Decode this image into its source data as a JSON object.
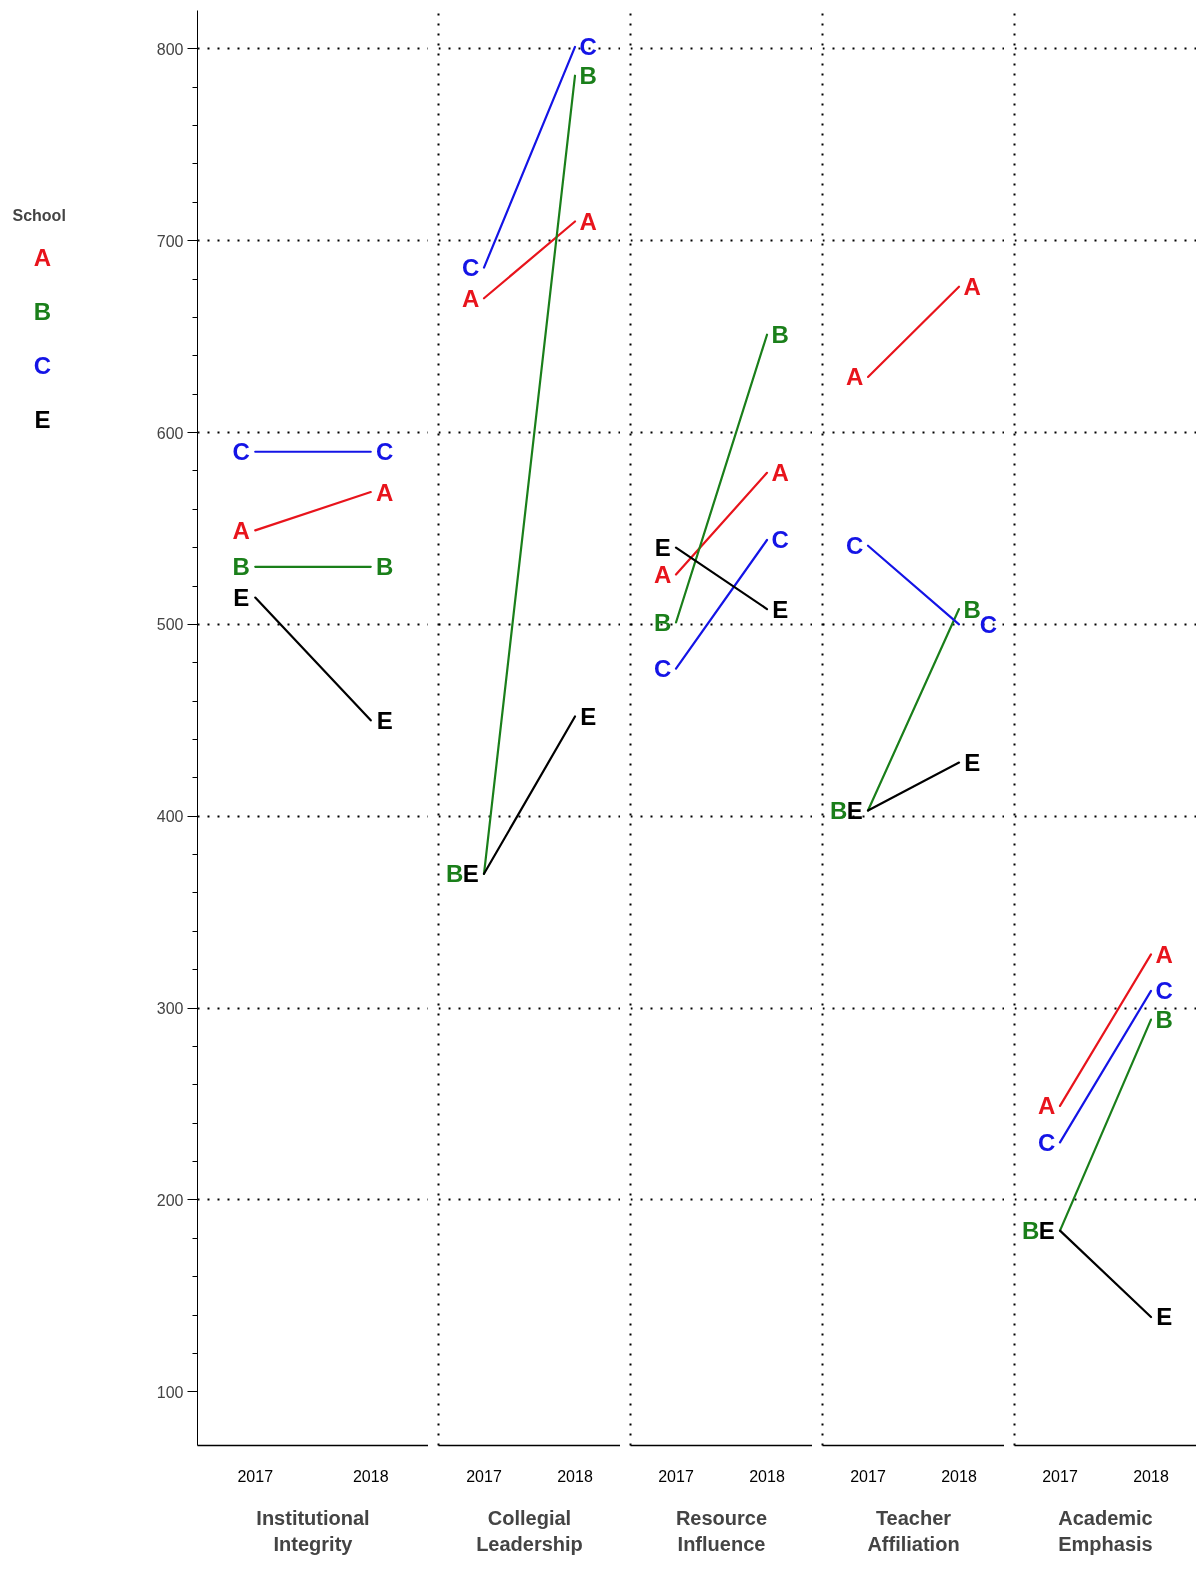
{
  "chart_data": [
    {
      "type": "line",
      "xlabel": "Institutional Integrity",
      "categories": [
        "2017",
        "2018"
      ],
      "ylim": [
        72,
        820
      ],
      "yticks": [
        100,
        200,
        300,
        400,
        500,
        600,
        700,
        800
      ],
      "grid": true,
      "legend": "left",
      "legend_title": "School",
      "series": [
        {
          "name": "A",
          "color": "#e8141c",
          "values": [
            549,
            569
          ]
        },
        {
          "name": "B",
          "color": "#1a7f1a",
          "values": [
            530,
            530
          ]
        },
        {
          "name": "C",
          "color": "#1414e6",
          "values": [
            590,
            590
          ]
        },
        {
          "name": "E",
          "color": "#000000",
          "values": [
            514,
            450
          ]
        }
      ]
    },
    {
      "type": "line",
      "xlabel": "Collegial Leadership",
      "categories": [
        "2017",
        "2018"
      ],
      "ylim": [
        72,
        820
      ],
      "yticks": [
        100,
        200,
        300,
        400,
        500,
        600,
        700,
        800
      ],
      "grid": true,
      "tick_labels": "x",
      "series": [
        {
          "name": "A",
          "color": "#e8141c",
          "values": [
            670,
            710
          ]
        },
        {
          "name": "B",
          "color": "#1a7f1a",
          "values": [
            370,
            786
          ]
        },
        {
          "name": "C",
          "color": "#1414e6",
          "values": [
            686,
            801
          ]
        },
        {
          "name": "E",
          "color": "#000000",
          "values": [
            370,
            452
          ]
        }
      ]
    },
    {
      "type": "line",
      "xlabel": "Resource Influence",
      "categories": [
        "2017",
        "2018"
      ],
      "ylim": [
        72,
        820
      ],
      "yticks": [
        100,
        200,
        300,
        400,
        500,
        600,
        700,
        800
      ],
      "grid": true,
      "tick_labels": "x",
      "series": [
        {
          "name": "A",
          "color": "#e8141c",
          "values": [
            526,
            579
          ]
        },
        {
          "name": "B",
          "color": "#1a7f1a",
          "values": [
            501,
            651
          ]
        },
        {
          "name": "C",
          "color": "#1414e6",
          "values": [
            477,
            544
          ]
        },
        {
          "name": "E",
          "color": "#000000",
          "values": [
            540,
            508
          ]
        }
      ]
    },
    {
      "type": "line",
      "xlabel": "Teacher Affiliation",
      "categories": [
        "2017",
        "2018"
      ],
      "ylim": [
        72,
        820
      ],
      "yticks": [
        100,
        200,
        300,
        400,
        500,
        600,
        700,
        800
      ],
      "grid": true,
      "tick_labels": "x",
      "series": [
        {
          "name": "A",
          "color": "#e8141c",
          "values": [
            629,
            676
          ]
        },
        {
          "name": "B",
          "color": "#1a7f1a",
          "values": [
            403,
            508
          ]
        },
        {
          "name": "C",
          "color": "#1414e6",
          "values": [
            541,
            500
          ]
        },
        {
          "name": "E",
          "color": "#000000",
          "values": [
            403,
            428
          ]
        }
      ]
    },
    {
      "type": "line",
      "xlabel": "Academic Emphasis",
      "categories": [
        "2017",
        "2018"
      ],
      "ylim": [
        72,
        820
      ],
      "yticks": [
        100,
        200,
        300,
        400,
        500,
        600,
        700,
        800
      ],
      "grid": true,
      "tick_labels": "x",
      "series": [
        {
          "name": "A",
          "color": "#e8141c",
          "values": [
            249,
            328
          ]
        },
        {
          "name": "B",
          "color": "#1a7f1a",
          "values": [
            184,
            294
          ]
        },
        {
          "name": "C",
          "color": "#1414e6",
          "values": [
            230,
            309
          ]
        },
        {
          "name": "E",
          "color": "#000000",
          "values": [
            184,
            139
          ]
        }
      ]
    }
  ]
}
